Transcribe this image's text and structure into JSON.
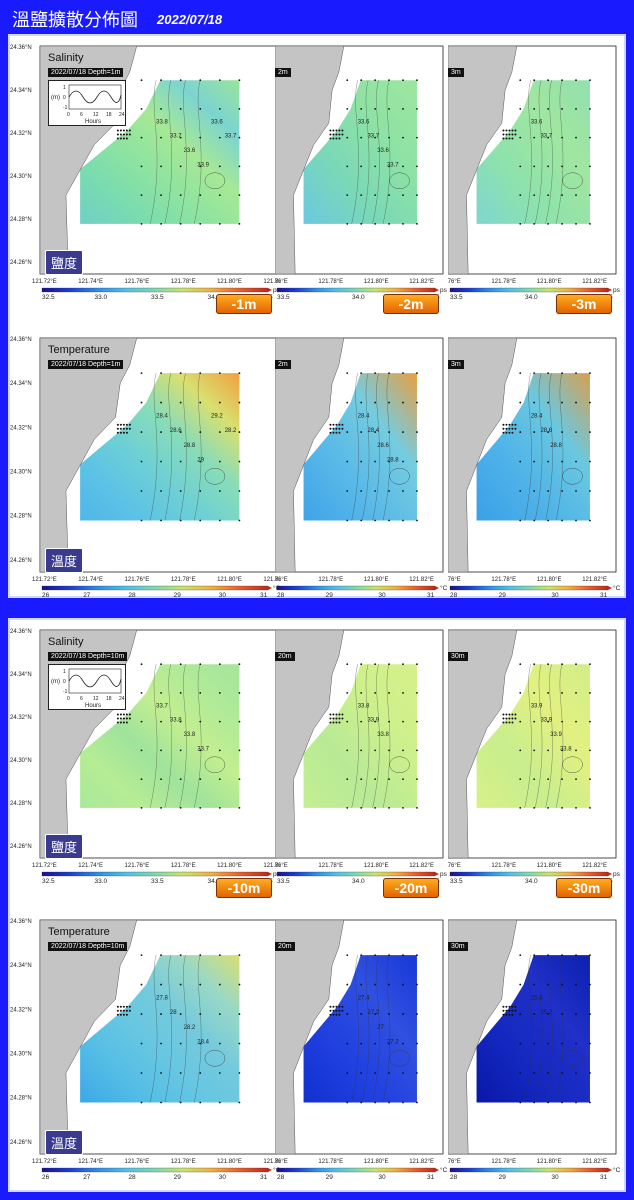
{
  "header": {
    "title": "溫鹽擴散分佈圖",
    "date": "2022/07/18"
  },
  "sections": [
    {
      "rows": [
        {
          "variable": "Salinity",
          "badge_main": "鹽度",
          "stamp": "2022/07/18 Depth=1m",
          "depth_stamps": [
            "2m",
            "3m"
          ],
          "depth_badges": [
            "-1m",
            "-2m",
            "-3m"
          ],
          "unit": "psu",
          "cb_ticks_first": [
            "32.5",
            "33.0",
            "33.5",
            "34.0",
            "34.5"
          ],
          "cb_ticks_other": [
            "33.5",
            "34.0",
            "34.5"
          ],
          "contour_labels": [
            [
              "33.8",
              "33.7",
              "33.6",
              "33.9",
              "33.6",
              "33.7"
            ],
            [
              "33.6",
              "33.7",
              "33.6",
              "33.7"
            ],
            [
              "33.6",
              "33.7"
            ]
          ],
          "palette": "sal"
        },
        {
          "variable": "Temperature",
          "badge_main": "溫度",
          "stamp": "2022/07/18 Depth=1m",
          "depth_stamps": [
            "2m",
            "3m"
          ],
          "depth_badges": [],
          "unit": "°C",
          "cb_ticks_first": [
            "26",
            "27",
            "28",
            "29",
            "30",
            "31"
          ],
          "cb_ticks_other": [
            "28",
            "29",
            "30",
            "31"
          ],
          "contour_labels": [
            [
              "28.4",
              "28.6",
              "28.8",
              "29",
              "29.2",
              "28.2"
            ],
            [
              "28.4",
              "28.4",
              "28.6",
              "28.8"
            ],
            [
              "28.4",
              "28.6",
              "28.8"
            ]
          ],
          "palette": "temp"
        }
      ]
    },
    {
      "rows": [
        {
          "variable": "Salinity",
          "badge_main": "鹽度",
          "stamp": "2022/07/18 Depth=10m",
          "depth_stamps": [
            "20m",
            "30m"
          ],
          "depth_badges": [
            "-10m",
            "-20m",
            "-30m"
          ],
          "unit": "psu",
          "cb_ticks_first": [
            "32.5",
            "33.0",
            "33.5",
            "34.0",
            "34.5"
          ],
          "cb_ticks_other": [
            "33.5",
            "34.0",
            "34.5"
          ],
          "contour_labels": [
            [
              "33.7",
              "33.8",
              "33.8",
              "33.7"
            ],
            [
              "33.8",
              "33.9",
              "33.8"
            ],
            [
              "33.9",
              "33.9",
              "33.9",
              "33.8"
            ]
          ],
          "palette": "sal2"
        },
        {
          "variable": "Temperature",
          "badge_main": "溫度",
          "stamp": "2022/07/18 Depth=10m",
          "depth_stamps": [
            "20m",
            "30m"
          ],
          "depth_badges": [],
          "unit": "°C",
          "cb_ticks_first": [
            "26",
            "27",
            "28",
            "29",
            "30",
            "31"
          ],
          "cb_ticks_other": [
            "28",
            "29",
            "30",
            "31"
          ],
          "contour_labels": [
            [
              "27.8",
              "28",
              "28.2",
              "28.4"
            ],
            [
              "27.4",
              "27.2",
              "27",
              "27.2"
            ],
            [
              "25.4",
              "25.2"
            ]
          ],
          "palette": "temp2"
        }
      ]
    }
  ],
  "axes": {
    "lat": [
      "24.36°N",
      "24.34°N",
      "24.32°N",
      "24.30°N",
      "24.28°N",
      "24.26°N"
    ],
    "lon_first": [
      "121.72°E",
      "121.74°E",
      "121.76°E",
      "121.78°E",
      "121.80°E",
      "121.82°E"
    ],
    "lon_other": [
      ".76°E",
      "121.78°E",
      "121.80°E",
      "121.82°E"
    ]
  },
  "tide_inset": {
    "ylabel": "(m)",
    "yticks": [
      "1",
      "0",
      "-1"
    ],
    "xticks": [
      "0",
      "6",
      "12",
      "18",
      "24"
    ],
    "xlabel": "Hours"
  },
  "colors": {
    "frame": "#1a1aff",
    "land": "#bfbfbf",
    "badge": "#e26000"
  }
}
